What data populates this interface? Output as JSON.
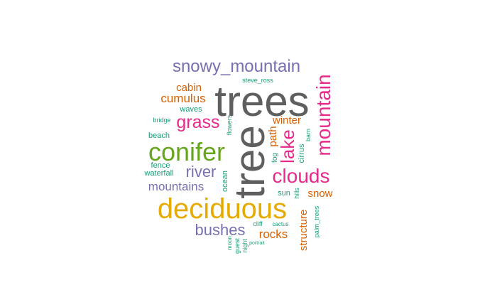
{
  "colors": {
    "gray": "#5f5f5f",
    "pink": "#e7298a",
    "green": "#66a61e",
    "purple": "#7570b3",
    "orange": "#d95f02",
    "gold": "#e6ab02",
    "teal": "#1b9e77",
    "brown": "#a6761d"
  },
  "words": [
    {
      "id": "trees",
      "text": "trees",
      "color": "gray"
    },
    {
      "id": "tree",
      "text": "tree",
      "color": "gray"
    },
    {
      "id": "snowy-mountain",
      "text": "snowy_mountain",
      "color": "purple"
    },
    {
      "id": "steve-ross",
      "text": "steve_ross",
      "color": "teal"
    },
    {
      "id": "mountain",
      "text": "mountain",
      "color": "pink"
    },
    {
      "id": "cabin",
      "text": "cabin",
      "color": "orange"
    },
    {
      "id": "cumulus",
      "text": "cumulus",
      "color": "orange"
    },
    {
      "id": "waves",
      "text": "waves",
      "color": "teal"
    },
    {
      "id": "bridge",
      "text": "bridge",
      "color": "teal"
    },
    {
      "id": "grass",
      "text": "grass",
      "color": "pink"
    },
    {
      "id": "winter",
      "text": "winter",
      "color": "orange"
    },
    {
      "id": "flowers",
      "text": "flowers",
      "color": "teal"
    },
    {
      "id": "beach",
      "text": "beach",
      "color": "teal"
    },
    {
      "id": "conifer",
      "text": "conifer",
      "color": "green"
    },
    {
      "id": "lake",
      "text": "lake",
      "color": "pink"
    },
    {
      "id": "path",
      "text": "path",
      "color": "orange"
    },
    {
      "id": "fog",
      "text": "fog",
      "color": "teal"
    },
    {
      "id": "cirrus",
      "text": "cirrus",
      "color": "teal"
    },
    {
      "id": "barn",
      "text": "barn",
      "color": "teal"
    },
    {
      "id": "fence",
      "text": "fence",
      "color": "teal"
    },
    {
      "id": "waterfall",
      "text": "waterfall",
      "color": "teal"
    },
    {
      "id": "river",
      "text": "river",
      "color": "purple"
    },
    {
      "id": "ocean",
      "text": "ocean",
      "color": "teal"
    },
    {
      "id": "clouds",
      "text": "clouds",
      "color": "pink"
    },
    {
      "id": "mountains",
      "text": "mountains",
      "color": "purple"
    },
    {
      "id": "sun",
      "text": "sun",
      "color": "teal"
    },
    {
      "id": "hills",
      "text": "hills",
      "color": "teal"
    },
    {
      "id": "snow",
      "text": "snow",
      "color": "orange"
    },
    {
      "id": "deciduous",
      "text": "deciduous",
      "color": "gold"
    },
    {
      "id": "structure",
      "text": "structure",
      "color": "orange"
    },
    {
      "id": "palm-trees",
      "text": "palm_trees",
      "color": "teal"
    },
    {
      "id": "cliff",
      "text": "cliff",
      "color": "teal"
    },
    {
      "id": "cactus",
      "text": "cactus",
      "color": "teal"
    },
    {
      "id": "bushes",
      "text": "bushes",
      "color": "purple"
    },
    {
      "id": "rocks",
      "text": "rocks",
      "color": "orange"
    },
    {
      "id": "moon",
      "text": "moon",
      "color": "teal"
    },
    {
      "id": "guest",
      "text": "guest",
      "color": "teal"
    },
    {
      "id": "night",
      "text": "night",
      "color": "teal"
    },
    {
      "id": "portrait",
      "text": "portrait",
      "color": "teal"
    }
  ]
}
